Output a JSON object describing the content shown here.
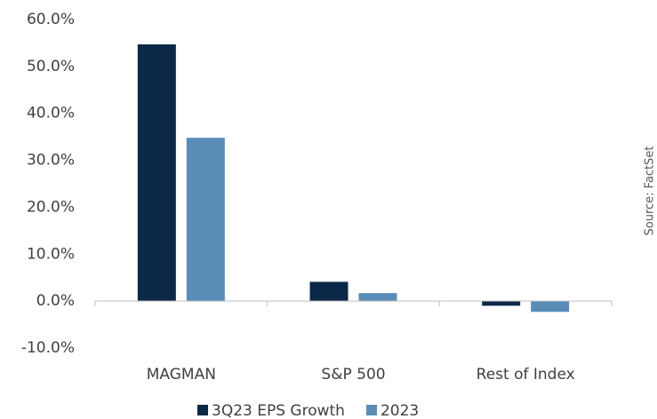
{
  "chart_data": {
    "type": "bar",
    "categories": [
      "MAGMAN",
      "S&P 500",
      "Rest of Index"
    ],
    "series": [
      {
        "name": "3Q23 EPS Growth",
        "color": "#0c2848",
        "values": [
          54.7,
          4.1,
          -1.0
        ]
      },
      {
        "name": "2023",
        "color": "#5a8cb8",
        "values": [
          34.8,
          1.7,
          -2.3
        ]
      }
    ],
    "ylim": [
      -10,
      60
    ],
    "yticks": [
      {
        "value": -10,
        "label": "-10.0%"
      },
      {
        "value": 0,
        "label": "0.0%"
      },
      {
        "value": 10,
        "label": "10.0%"
      },
      {
        "value": 20,
        "label": "20.0%"
      },
      {
        "value": 30,
        "label": "30.0%"
      },
      {
        "value": 40,
        "label": "40.0%"
      },
      {
        "value": 50,
        "label": "50.0%"
      },
      {
        "value": 60,
        "label": "60.0%"
      }
    ],
    "source": "Source: FactSet",
    "legend": "bottom"
  }
}
